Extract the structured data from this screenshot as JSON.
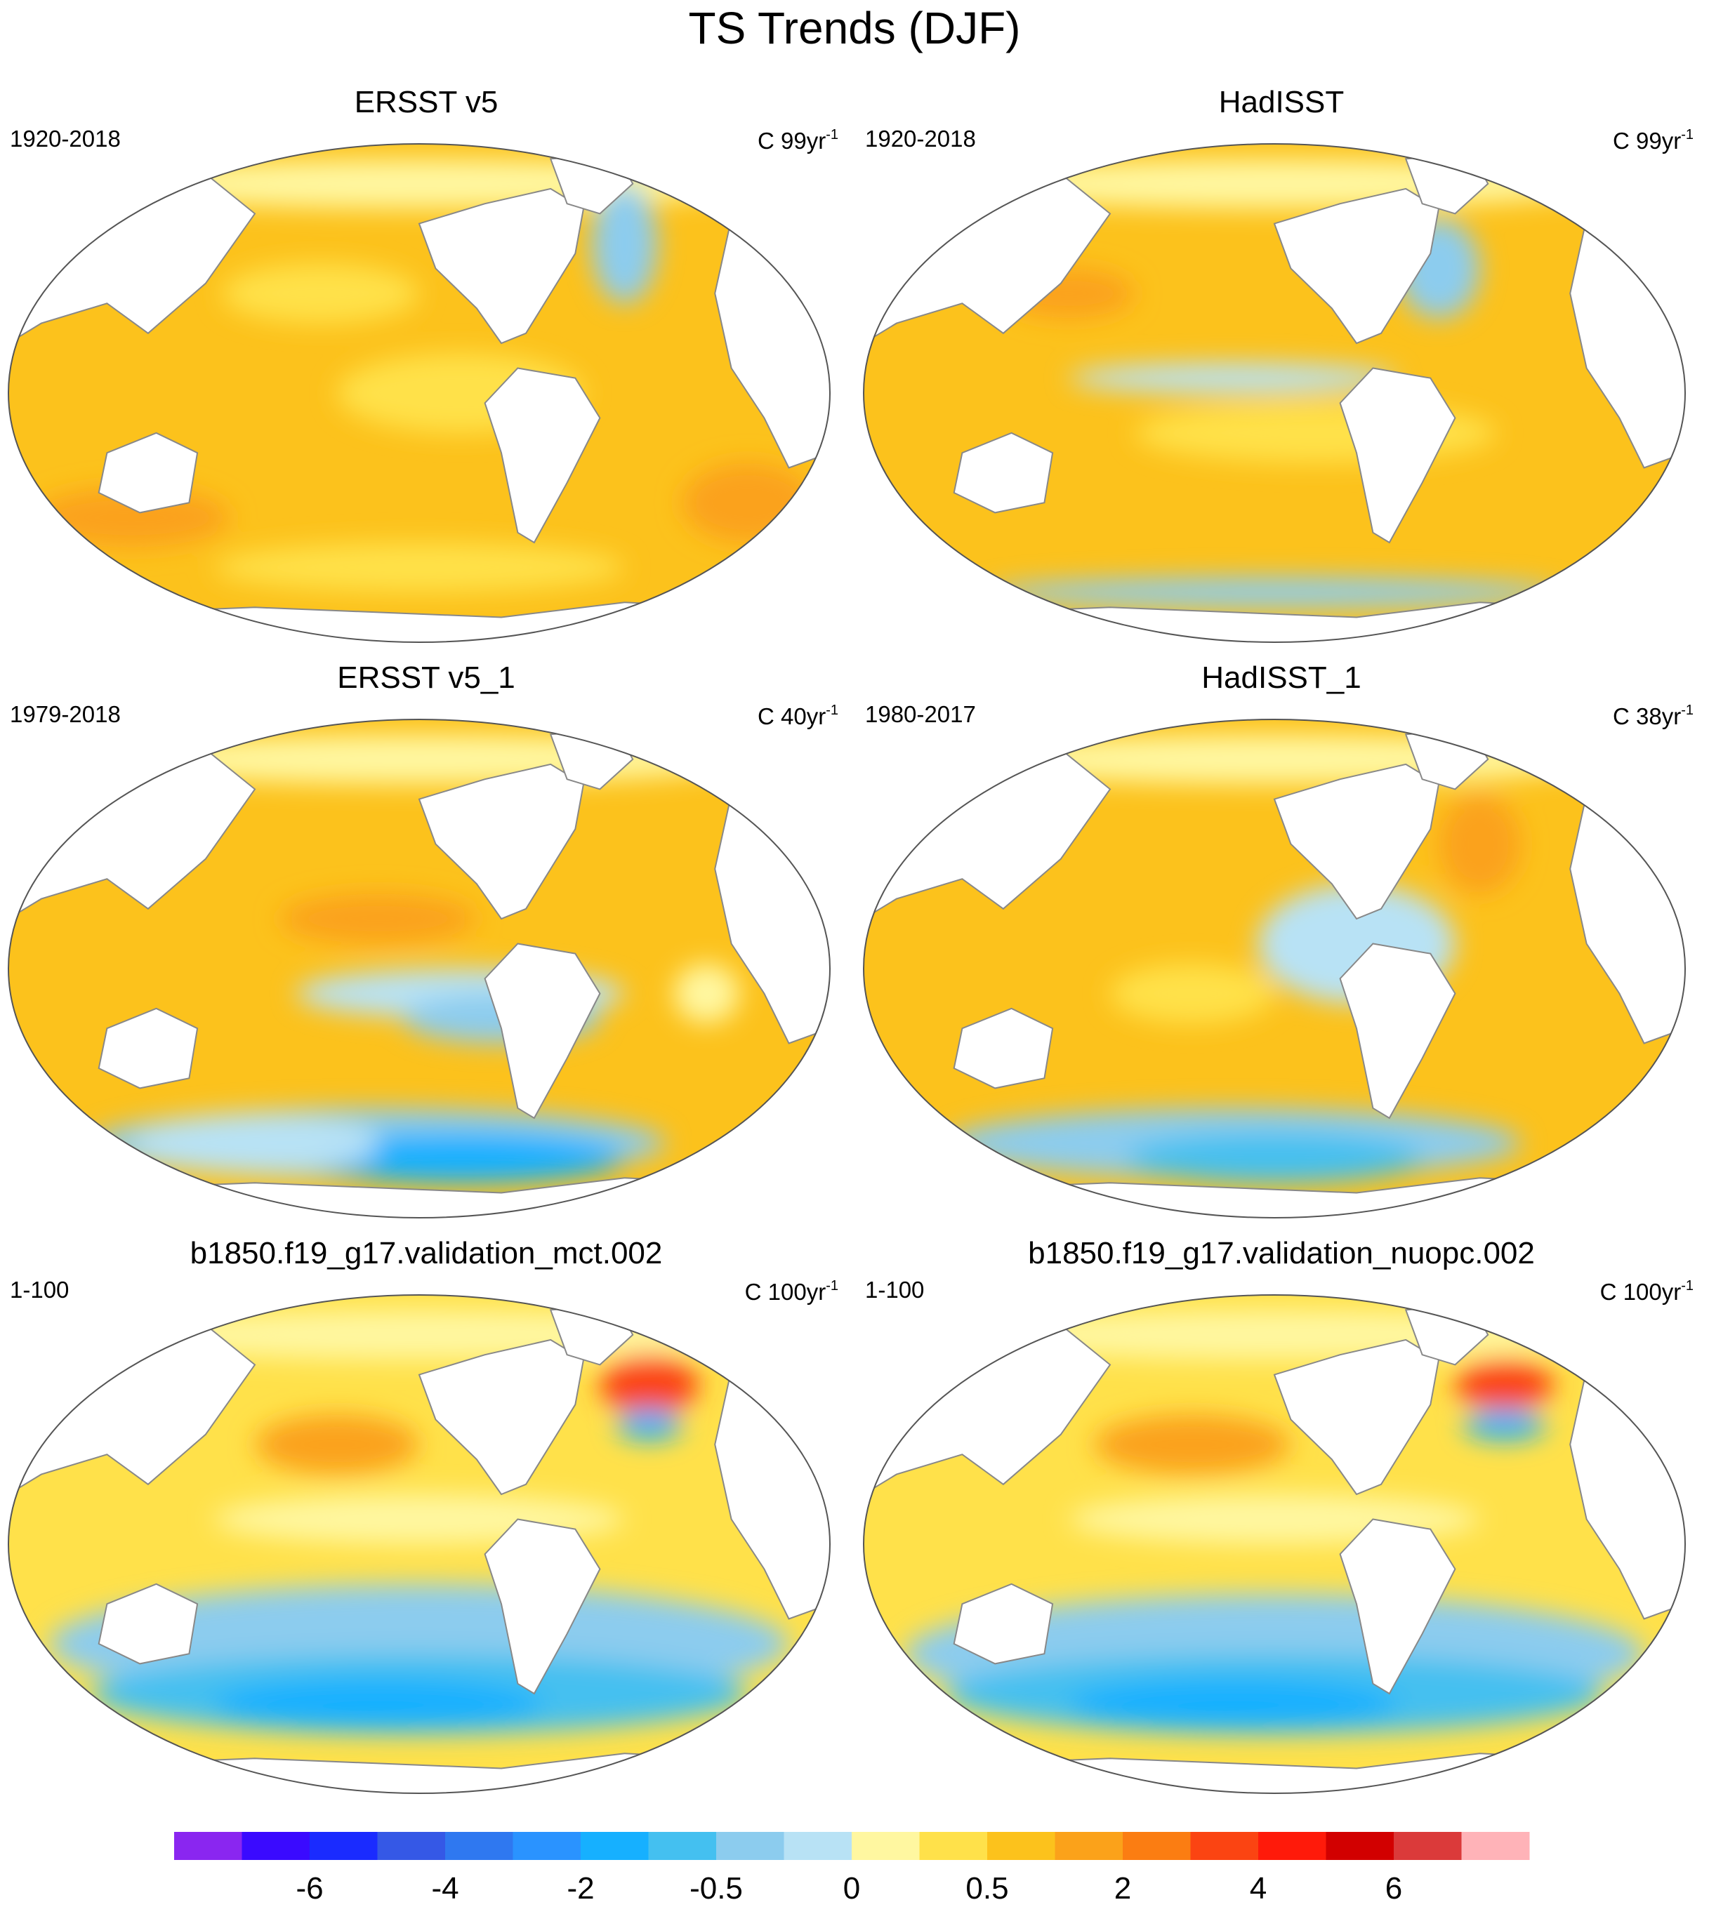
{
  "figure": {
    "title": "TS Trends (DJF)"
  },
  "panels": [
    {
      "title": "ERSST v5",
      "period": "1920-2018",
      "units_prefix": "C 99yr",
      "units_exp": "-1"
    },
    {
      "title": "HadISST",
      "period": "1920-2018",
      "units_prefix": "C 99yr",
      "units_exp": "-1"
    },
    {
      "title": "ERSST v5_1",
      "period": "1979-2018",
      "units_prefix": "C 40yr",
      "units_exp": "-1"
    },
    {
      "title": "HadISST_1",
      "period": "1980-2017",
      "units_prefix": "C 38yr",
      "units_exp": "-1"
    },
    {
      "title": "b1850.f19_g17.validation_mct.002",
      "period": "1-100",
      "units_prefix": "C 100yr",
      "units_exp": "-1"
    },
    {
      "title": "b1850.f19_g17.validation_nuopc.002",
      "period": "1-100",
      "units_prefix": "C 100yr",
      "units_exp": "-1"
    }
  ],
  "colorbar": {
    "colors": [
      "#8a26f0",
      "#3a0aff",
      "#1a2bff",
      "#3558e6",
      "#2f78f0",
      "#2a93ff",
      "#16b0ff",
      "#44c0f0",
      "#8cccee",
      "#b8e2f5",
      "#fff7a0",
      "#ffe14a",
      "#fcc21c",
      "#fba21a",
      "#fb7d12",
      "#fb4412",
      "#ff1a0a",
      "#d20000",
      "#db3a3a",
      "#ffb3b8"
    ],
    "tick_labels": [
      "-6",
      "-4",
      "-2",
      "-0.5",
      "0",
      "0.5",
      "2",
      "4",
      "6"
    ],
    "tick_boundaries": [
      2,
      4,
      6,
      8,
      10,
      12,
      14,
      16,
      18
    ]
  }
}
